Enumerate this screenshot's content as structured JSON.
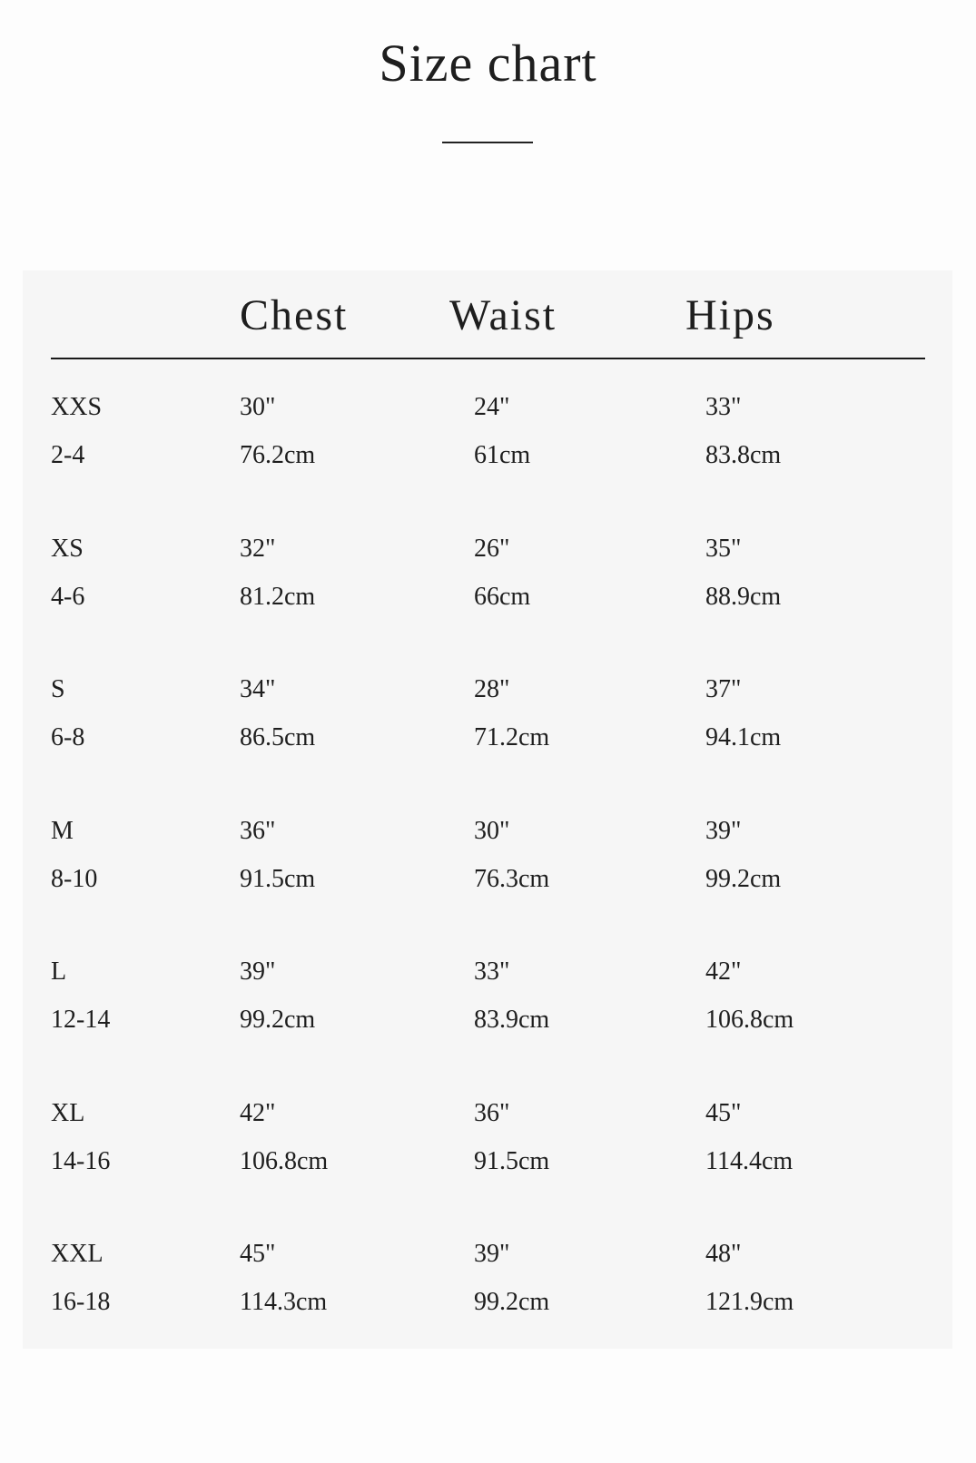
{
  "title": "Size chart",
  "headers": [
    "Chest",
    "Waist",
    "Hips"
  ],
  "rows": [
    {
      "size": "XXS",
      "us": "2-4",
      "chest_in": "30\"",
      "chest_cm": "76.2cm",
      "waist_in": "24\"",
      "waist_cm": "61cm",
      "hips_in": "33\"",
      "hips_cm": "83.8cm"
    },
    {
      "size": "XS",
      "us": "4-6",
      "chest_in": "32\"",
      "chest_cm": "81.2cm",
      "waist_in": "26\"",
      "waist_cm": "66cm",
      "hips_in": "35\"",
      "hips_cm": "88.9cm"
    },
    {
      "size": "S",
      "us": "6-8",
      "chest_in": "34\"",
      "chest_cm": "86.5cm",
      "waist_in": "28\"",
      "waist_cm": "71.2cm",
      "hips_in": "37\"",
      "hips_cm": "94.1cm"
    },
    {
      "size": "M",
      "us": "8-10",
      "chest_in": "36\"",
      "chest_cm": "91.5cm",
      "waist_in": "30\"",
      "waist_cm": "76.3cm",
      "hips_in": "39\"",
      "hips_cm": "99.2cm"
    },
    {
      "size": "L",
      "us": "12-14",
      "chest_in": "39\"",
      "chest_cm": "99.2cm",
      "waist_in": "33\"",
      "waist_cm": "83.9cm",
      "hips_in": "42\"",
      "hips_cm": "106.8cm"
    },
    {
      "size": "XL",
      "us": "14-16",
      "chest_in": "42\"",
      "chest_cm": "106.8cm",
      "waist_in": "36\"",
      "waist_cm": "91.5cm",
      "hips_in": "45\"",
      "hips_cm": "114.4cm"
    },
    {
      "size": "XXL",
      "us": "16-18",
      "chest_in": "45\"",
      "chest_cm": "114.3cm",
      "waist_in": "39\"",
      "waist_cm": "99.2cm",
      "hips_in": "48\"",
      "hips_cm": "121.9cm"
    }
  ]
}
